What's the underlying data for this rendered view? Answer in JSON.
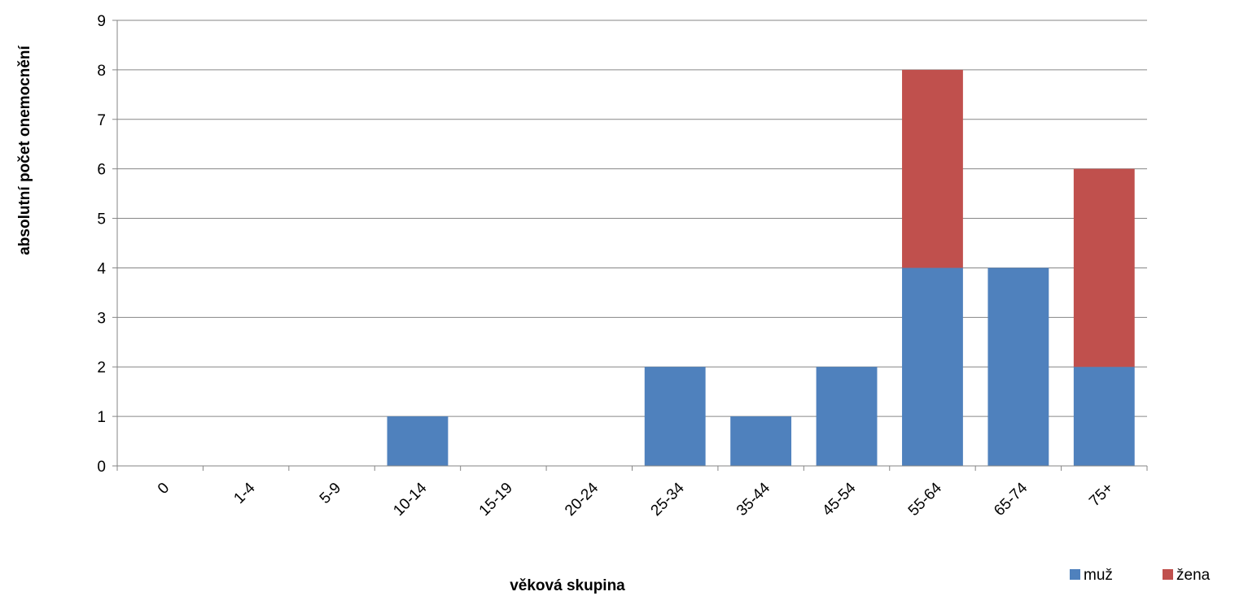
{
  "chart_data": {
    "type": "bar",
    "stacked": true,
    "categories": [
      "0",
      "1-4",
      "5-9",
      "10-14",
      "15-19",
      "20-24",
      "25-34",
      "35-44",
      "45-54",
      "55-64",
      "65-74",
      "75+"
    ],
    "series": [
      {
        "name": "muž",
        "color": "#4F81BD",
        "values": [
          0,
          0,
          0,
          1,
          0,
          0,
          2,
          1,
          2,
          4,
          4,
          2
        ]
      },
      {
        "name": "žena",
        "color": "#C0504D",
        "values": [
          0,
          0,
          0,
          0,
          0,
          0,
          0,
          0,
          0,
          4,
          0,
          4
        ]
      }
    ],
    "title": "",
    "xlabel": "věková skupina",
    "ylabel": "absolutní počet onemocnění",
    "ylim": [
      0,
      9
    ],
    "yticks": [
      0,
      1,
      2,
      3,
      4,
      5,
      6,
      7,
      8,
      9
    ],
    "grid": true,
    "legend_position": "bottom-right"
  }
}
